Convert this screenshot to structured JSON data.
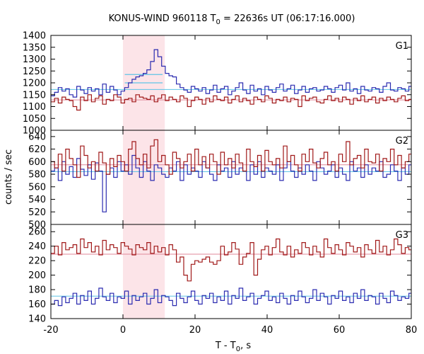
{
  "title_main": "KONUS-WIND 960118 T",
  "title_sub": "0",
  "title_rest": " = 22636s UT (06:17:16.000)",
  "xlabel_main": "T - T",
  "xlabel_sub": "0",
  "xlabel_rest": ", s",
  "ylabel": "counts / sec",
  "colors": {
    "blue": "#2b2bb0",
    "red": "#a01818",
    "fit": "#5fc4e6",
    "redfit": "#e08a9a",
    "shade": "#fce4e8"
  },
  "chart_data": {
    "type": "line",
    "xlim": [
      -20,
      80
    ],
    "xticks": [
      -20,
      0,
      20,
      40,
      60,
      80
    ],
    "highlight_interval": [
      0,
      11.6
    ],
    "bin_width": 1.024,
    "x_start": -20,
    "panels": [
      {
        "name": "G1",
        "ylim": [
          1000,
          1400
        ],
        "yticks": [
          1000,
          1050,
          1100,
          1150,
          1200,
          1250,
          1300,
          1350,
          1400
        ],
        "blue_fit": 1172,
        "red_fit": 1128,
        "pulse_fit": {
          "x0": 0.5,
          "x1": 11,
          "blue": 1235,
          "red": 1200
        },
        "series": [
          {
            "color": "blue",
            "values": [
              1145,
              1160,
              1180,
              1165,
              1175,
              1150,
              1140,
              1185,
              1170,
              1155,
              1180,
              1165,
              1175,
              1150,
              1195,
              1160,
              1185,
              1170,
              1150,
              1165,
              1180,
              1200,
              1215,
              1225,
              1230,
              1240,
              1255,
              1290,
              1340,
              1310,
              1270,
              1240,
              1230,
              1225,
              1195,
              1180,
              1170,
              1160,
              1185,
              1175,
              1165,
              1180,
              1155,
              1170,
              1190,
              1160,
              1175,
              1185,
              1150,
              1165,
              1180,
              1200,
              1170,
              1155,
              1190,
              1165,
              1175,
              1150,
              1185,
              1170,
              1160,
              1180,
              1195,
              1165,
              1175,
              1190,
              1155,
              1170,
              1185,
              1160,
              1175,
              1180,
              1165,
              1170,
              1185,
              1175,
              1160,
              1180,
              1190,
              1170,
              1200,
              1165,
              1175,
              1155,
              1185,
              1170,
              1165,
              1180,
              1175,
              1160,
              1185,
              1200,
              1170,
              1165,
              1180,
              1175,
              1165,
              1185,
              1170
            ]
          },
          {
            "color": "red",
            "values": [
              1120,
              1135,
              1115,
              1140,
              1130,
              1125,
              1100,
              1085,
              1140,
              1125,
              1150,
              1120,
              1135,
              1145,
              1110,
              1130,
              1125,
              1150,
              1140,
              1115,
              1130,
              1135,
              1120,
              1150,
              1140,
              1135,
              1130,
              1145,
              1120,
              1135,
              1150,
              1125,
              1140,
              1130,
              1120,
              1145,
              1135,
              1100,
              1125,
              1140,
              1130,
              1110,
              1135,
              1120,
              1145,
              1130,
              1125,
              1140,
              1115,
              1130,
              1145,
              1120,
              1135,
              1125,
              1110,
              1140,
              1130,
              1120,
              1145,
              1135,
              1115,
              1130,
              1125,
              1140,
              1120,
              1135,
              1130,
              1100,
              1145,
              1125,
              1135,
              1140,
              1120,
              1115,
              1130,
              1145,
              1125,
              1135,
              1120,
              1140,
              1130,
              1110,
              1135,
              1125,
              1145,
              1120,
              1130,
              1140,
              1115,
              1135,
              1125,
              1140,
              1130,
              1120,
              1135,
              1145,
              1125,
              1130
            ]
          }
        ]
      },
      {
        "name": "G2",
        "ylim": [
          500,
          650
        ],
        "yticks": [
          500,
          520,
          540,
          560,
          580,
          600,
          620,
          640
        ],
        "blue_fit": 584,
        "red_fit": 595,
        "series": [
          {
            "color": "blue",
            "values": [
              585,
              590,
              570,
              600,
              580,
              592,
              575,
              605,
              588,
              578,
              595,
              572,
              598,
              585,
              520,
              580,
              590,
              575,
              600,
              585,
              595,
              580,
              610,
              590,
              575,
              600,
              585,
              570,
              595,
              590,
              580,
              575,
              590,
              585,
              600,
              570,
              595,
              580,
              590,
              585,
              575,
              600,
              590,
              580,
              570,
              595,
              585,
              590,
              575,
              600,
              580,
              590,
              585,
              570,
              595,
              580,
              600,
              575,
              590,
              585,
              580,
              595,
              570,
              590,
              600,
              585,
              575,
              590,
              580,
              595,
              585,
              570,
              600,
              590,
              580,
              585,
              595,
              575,
              590,
              580,
              570,
              600,
              585,
              590,
              575,
              595,
              580,
              590,
              585,
              600,
              575,
              580,
              595,
              585,
              570,
              590,
              580,
              595,
              585
            ]
          },
          {
            "color": "red",
            "values": [
              600,
              590,
              612,
              585,
              620,
              605,
              595,
              575,
              625,
              610,
              590,
              600,
              585,
              615,
              598,
              580,
              605,
              592,
              610,
              600,
              585,
              620,
              632,
              605,
              595,
              612,
              590,
              625,
              635,
              600,
              610,
              595,
              580,
              615,
              605,
              590,
              600,
              612,
              585,
              620,
              595,
              608,
              590,
              612,
              600,
              580,
              615,
              595,
              605,
              590,
              612,
              598,
              585,
              620,
              600,
              592,
              610,
              585,
              618,
              600,
              595,
              605,
              590,
              625,
              600,
              610,
              595,
              585,
              612,
              600,
              620,
              598,
              590,
              605,
              615,
              595,
              600,
              585,
              612,
              600,
              632,
              595,
              605,
              610,
              590,
              620,
              600,
              598,
              612,
              585,
              605,
              600,
              620,
              595,
              610,
              590,
              600,
              612,
              598
            ]
          }
        ]
      },
      {
        "name": "G3",
        "ylim": [
          140,
          270
        ],
        "yticks": [
          140,
          160,
          180,
          200,
          220,
          240,
          260
        ],
        "blue_fit": 171,
        "red_fit": 229,
        "series": [
          {
            "color": "blue",
            "values": [
              160,
              165,
              158,
              170,
              162,
              168,
              175,
              160,
              172,
              165,
              178,
              160,
              168,
              182,
              170,
              165,
              175,
              162,
              170,
              168,
              178,
              160,
              172,
              165,
              170,
              175,
              160,
              168,
              180,
              162,
              172,
              170,
              165,
              158,
              175,
              168,
              162,
              170,
              178,
              165,
              160,
              172,
              168,
              175,
              162,
              170,
              165,
              178,
              160,
              172,
              168,
              182,
              165,
              170,
              175,
              160,
              168,
              172,
              178,
              165,
              170,
              162,
              175,
              168,
              160,
              172,
              165,
              178,
              170,
              162,
              168,
              180,
              165,
              175,
              170,
              160,
              172,
              168,
              178,
              165,
              170,
              162,
              175,
              168,
              180,
              165,
              172,
              170,
              160,
              175,
              168,
              162,
              178,
              172,
              165,
              170,
              168,
              175,
              165
            ]
          },
          {
            "color": "red",
            "values": [
              230,
              240,
              228,
              245,
              235,
              238,
              242,
              230,
              250,
              238,
              245,
              232,
              240,
              228,
              248,
              235,
              242,
              238,
              230,
              245,
              240,
              236,
              228,
              242,
              238,
              235,
              245,
              230,
              240,
              232,
              238,
              228,
              242,
              235,
              218,
              225,
              200,
              192,
              215,
              220,
              218,
              222,
              225,
              218,
              215,
              220,
              240,
              228,
              232,
              245,
              236,
              215,
              225,
              230,
              245,
              200,
              222,
              235,
              240,
              228,
              238,
              250,
              232,
              228,
              240,
              225,
              235,
              230,
              245,
              238,
              228,
              240,
              232,
              225,
              250,
              238,
              230,
              242,
              235,
              228,
              245,
              240,
              232,
              238,
              225,
              242,
              235,
              230,
              248,
              232,
              240,
              228,
              235,
              250,
              242,
              230,
              238,
              235,
              240
            ]
          }
        ]
      }
    ]
  }
}
